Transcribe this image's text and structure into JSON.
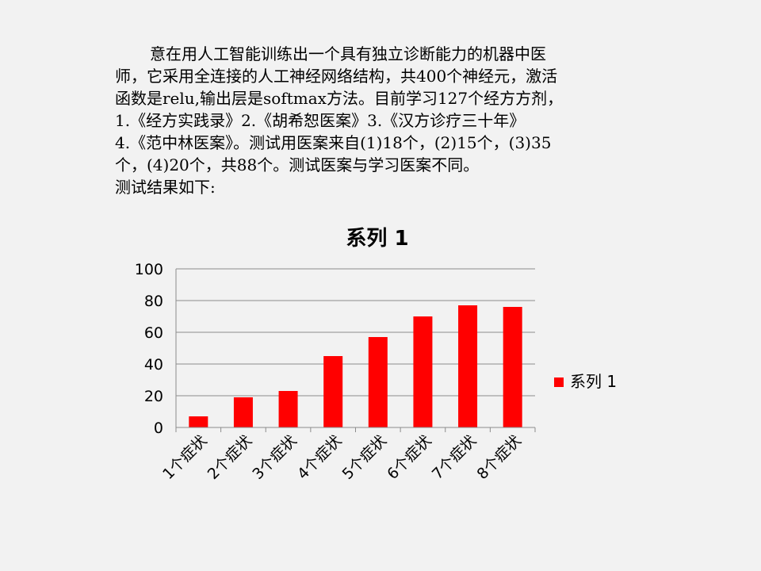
{
  "intro": {
    "lines": [
      "意在用人工智能训练出一个具有独立诊断能力的机器中医",
      "师，它采用全连接的人工神经网络结构，共400个神经元，激活",
      "函数是relu,输出层是softmax方法。目前学习127个经方方剂，",
      "1.《经方实践录》2.《胡希恕医案》3.《汉方诊疗三十年》",
      "4.《范中林医案》。测试用医案来自(1)18个，(2)15个，(3)35",
      "个，(4)20个，共88个。测试医案与学习医案不同。",
      "测试结果如下:"
    ]
  },
  "chart_data": {
    "type": "bar",
    "title": "系列 1",
    "categories": [
      "1个症状",
      "2个症状",
      "3个症状",
      "4个症状",
      "5个症状",
      "6个症状",
      "7个症状",
      "8个症状"
    ],
    "series": [
      {
        "name": "系列 1",
        "values": [
          7,
          19,
          23,
          45,
          57,
          70,
          77,
          76
        ],
        "color": "#ff0000"
      }
    ],
    "ylim": [
      0,
      100
    ],
    "yticks": [
      0,
      20,
      40,
      60,
      80,
      100
    ],
    "grid": true,
    "legend": "right",
    "xlabel": "",
    "ylabel": ""
  }
}
